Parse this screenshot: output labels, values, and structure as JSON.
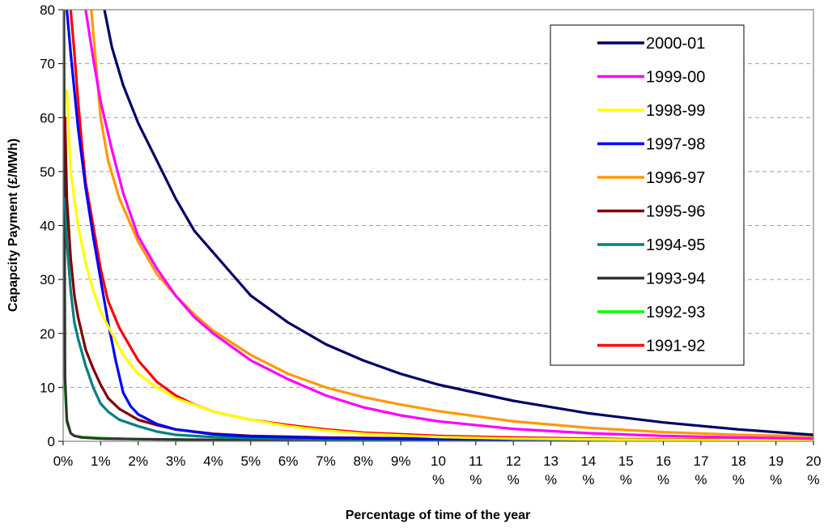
{
  "chart_data": {
    "type": "line",
    "title": "",
    "xlabel": "Percentage of time of the year",
    "ylabel": "Capapcity Payment (£/MWh)",
    "xlim": [
      0,
      20
    ],
    "ylim": [
      0,
      80
    ],
    "x_ticks": [
      {
        "value": 0,
        "label": "0%"
      },
      {
        "value": 1,
        "label": "1%"
      },
      {
        "value": 2,
        "label": "2%"
      },
      {
        "value": 3,
        "label": "3%"
      },
      {
        "value": 4,
        "label": "4%"
      },
      {
        "value": 5,
        "label": "5%"
      },
      {
        "value": 6,
        "label": "6%"
      },
      {
        "value": 7,
        "label": "7%"
      },
      {
        "value": 8,
        "label": "8%"
      },
      {
        "value": 9,
        "label": "9%"
      },
      {
        "value": 10,
        "label": "10\n%"
      },
      {
        "value": 11,
        "label": "11\n%"
      },
      {
        "value": 12,
        "label": "12\n%"
      },
      {
        "value": 13,
        "label": "13\n%"
      },
      {
        "value": 14,
        "label": "14\n%"
      },
      {
        "value": 15,
        "label": "15\n%"
      },
      {
        "value": 16,
        "label": "16\n%"
      },
      {
        "value": 17,
        "label": "17\n%"
      },
      {
        "value": 18,
        "label": "18\n%"
      },
      {
        "value": 19,
        "label": "19\n%"
      },
      {
        "value": 20,
        "label": "20\n%"
      }
    ],
    "y_ticks": [
      0,
      10,
      20,
      30,
      40,
      50,
      60,
      70,
      80
    ],
    "grid": "horizontal dashed",
    "legend_position": "top-right",
    "series": [
      {
        "name": "2000-01",
        "color": "#000066",
        "x": [
          1.1,
          1.3,
          1.6,
          2.0,
          2.5,
          3.0,
          3.5,
          4.0,
          4.5,
          5.0,
          6.0,
          7.0,
          8.0,
          9.0,
          10.0,
          12.0,
          14.0,
          16.0,
          18.0,
          20.0
        ],
        "y": [
          80,
          73,
          66,
          59,
          52,
          45,
          39,
          35,
          31,
          27,
          22,
          18,
          15,
          12.5,
          10.5,
          7.5,
          5.2,
          3.5,
          2.2,
          1.2
        ]
      },
      {
        "name": "1999-00",
        "color": "#ff00ff",
        "x": [
          0.6,
          0.8,
          1.0,
          1.3,
          1.6,
          2.0,
          2.5,
          3.0,
          3.5,
          4.0,
          5.0,
          6.0,
          7.0,
          8.0,
          9.0,
          10.0,
          12.0,
          14.0,
          16.0,
          18.0,
          20.0
        ],
        "y": [
          80,
          71,
          63,
          54,
          46,
          38,
          32,
          27,
          23,
          20,
          15,
          11.5,
          8.5,
          6.3,
          4.8,
          3.7,
          2.3,
          1.5,
          1.0,
          0.7,
          0.5
        ]
      },
      {
        "name": "1998-99",
        "color": "#ffff00",
        "x": [
          0.1,
          0.2,
          0.4,
          0.6,
          0.8,
          1.0,
          1.3,
          1.6,
          2.0,
          2.5,
          3.0,
          4.0,
          5.0,
          6.0,
          7.0,
          8.0,
          10.0,
          12.0,
          15.0,
          20.0
        ],
        "y": [
          65,
          50,
          40,
          33,
          28,
          24,
          20,
          16,
          12.5,
          10,
          8,
          5.5,
          4,
          2.8,
          2.0,
          1.4,
          0.8,
          0.5,
          0.3,
          0.2
        ]
      },
      {
        "name": "1997-98",
        "color": "#0000ff",
        "x": [
          0.1,
          0.2,
          0.4,
          0.6,
          0.8,
          1.0,
          1.2,
          1.4,
          1.6,
          1.8,
          2.0,
          2.5,
          3.0,
          4.0,
          5.0,
          7.0,
          10.0,
          15.0,
          20.0
        ],
        "y": [
          80,
          72,
          58,
          47,
          38,
          30,
          22,
          15,
          9,
          6.5,
          5,
          3.2,
          2.2,
          1.3,
          0.9,
          0.6,
          0.4,
          0.3,
          0.2
        ]
      },
      {
        "name": "1996-97",
        "color": "#ff9900",
        "x": [
          0.75,
          0.9,
          1.0,
          1.2,
          1.5,
          2.0,
          2.5,
          3.0,
          3.5,
          4.0,
          5.0,
          6.0,
          7.0,
          8.0,
          9.0,
          10.0,
          12.0,
          14.0,
          16.0,
          18.0,
          20.0
        ],
        "y": [
          80,
          68,
          60,
          52,
          45,
          37,
          31,
          27,
          23.5,
          20.5,
          16,
          12.5,
          10,
          8.2,
          6.8,
          5.6,
          3.7,
          2.5,
          1.7,
          1.2,
          0.9
        ]
      },
      {
        "name": "1995-96",
        "color": "#800000",
        "x": [
          0.05,
          0.1,
          0.2,
          0.3,
          0.4,
          0.5,
          0.6,
          0.8,
          1.0,
          1.2,
          1.5,
          2.0,
          2.5,
          3.0,
          4.0,
          5.0,
          7.0,
          10.0,
          15.0,
          20.0
        ],
        "y": [
          60,
          45,
          34,
          27,
          23,
          20,
          17,
          13.5,
          10.5,
          8,
          6,
          4,
          3,
          2.2,
          1.4,
          1.0,
          0.7,
          0.5,
          0.3,
          0.2
        ]
      },
      {
        "name": "1994-95",
        "color": "#008080",
        "x": [
          0.05,
          0.1,
          0.2,
          0.3,
          0.4,
          0.5,
          0.6,
          0.8,
          1.0,
          1.2,
          1.5,
          2.0,
          2.5,
          3.0,
          4.0,
          5.0,
          7.0,
          10.0,
          15.0,
          20.0
        ],
        "y": [
          45,
          37,
          28,
          22,
          19,
          16.5,
          14,
          10,
          7,
          5.5,
          4,
          2.8,
          1.8,
          1.2,
          0.8,
          0.6,
          0.4,
          0.3,
          0.2,
          0.1
        ]
      },
      {
        "name": "1993-94",
        "color": "#333333",
        "x": [
          0.02,
          0.05,
          0.1,
          0.2,
          0.3,
          0.5,
          1.0,
          2.0,
          5.0,
          10.0,
          20.0
        ],
        "y": [
          80,
          12,
          4,
          1.5,
          1.0,
          0.7,
          0.5,
          0.4,
          0.2,
          0.1,
          0.05
        ]
      },
      {
        "name": "1992-93",
        "color": "#00ff00",
        "x": [
          0.02,
          0.05,
          0.1,
          0.2,
          0.3,
          0.5,
          1.0,
          2.0,
          5.0,
          10.0,
          20.0
        ],
        "y": [
          80,
          10,
          3.5,
          1.5,
          1.0,
          0.8,
          0.6,
          0.4,
          0.2,
          0.1,
          0.05
        ]
      },
      {
        "name": "1991-92",
        "color": "#ff0000",
        "x": [
          0.2,
          0.3,
          0.4,
          0.5,
          0.6,
          0.8,
          1.0,
          1.2,
          1.5,
          2.0,
          2.5,
          3.0,
          3.5,
          4.0,
          5.0,
          6.0,
          7.0,
          8.0,
          10.0,
          12.0,
          15.0,
          20.0
        ],
        "y": [
          80,
          72,
          63,
          55,
          48,
          40,
          32,
          26,
          21,
          15,
          11,
          8.5,
          6.8,
          5.5,
          4,
          3,
          2.2,
          1.6,
          1.0,
          0.7,
          0.4,
          0.3
        ]
      }
    ]
  }
}
